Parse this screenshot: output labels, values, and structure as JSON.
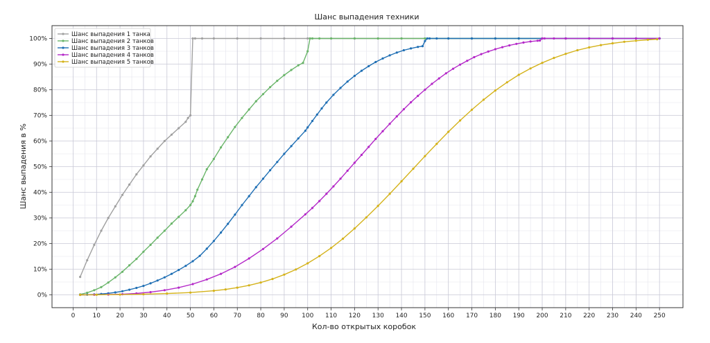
{
  "chart_data": {
    "type": "line",
    "title": "Шанс выпадения техники",
    "xlabel": "Кол-во открытых коробок",
    "ylabel": "Шанс выпадения в %",
    "xlim": [
      -9,
      260
    ],
    "ylim": [
      -5,
      105
    ],
    "xticks": [
      0,
      10,
      20,
      30,
      40,
      50,
      60,
      70,
      80,
      90,
      100,
      110,
      120,
      130,
      140,
      150,
      160,
      170,
      180,
      190,
      200,
      210,
      220,
      230,
      240,
      250
    ],
    "yticks": [
      0,
      10,
      20,
      30,
      40,
      50,
      60,
      70,
      80,
      90,
      100
    ],
    "ytick_labels": [
      "0%",
      "10%",
      "20%",
      "30%",
      "40%",
      "50%",
      "60%",
      "70%",
      "80%",
      "90%",
      "100%"
    ],
    "grid": true,
    "legend": "top-left",
    "series": [
      {
        "name": "Шанс выпадения 1 танка",
        "color": "#a0a0a0",
        "x": [
          3,
          6,
          9,
          12,
          15,
          18,
          21,
          24,
          27,
          30,
          33,
          36,
          39,
          42,
          45,
          48,
          49,
          50,
          51,
          52,
          55,
          60,
          70,
          80,
          90,
          100,
          110,
          120,
          130,
          140,
          150,
          160,
          170,
          180,
          190,
          200,
          210,
          220,
          230,
          240,
          250
        ],
        "y": [
          7,
          13.5,
          19.5,
          25,
          30,
          34.5,
          39,
          43,
          47,
          50.5,
          54,
          57,
          60,
          62.5,
          65,
          67.5,
          69,
          70,
          100,
          100,
          100,
          100,
          100,
          100,
          100,
          100,
          100,
          100,
          100,
          100,
          100,
          100,
          100,
          100,
          100,
          100,
          100,
          100,
          100,
          100,
          100
        ]
      },
      {
        "name": "Шанс выпадения 2 танков",
        "color": "#6ab56a",
        "x": [
          3,
          6,
          9,
          12,
          15,
          18,
          21,
          24,
          27,
          30,
          33,
          36,
          39,
          42,
          45,
          48,
          50,
          51,
          52,
          53,
          55,
          57,
          60,
          63,
          66,
          69,
          72,
          75,
          78,
          81,
          84,
          87,
          90,
          93,
          96,
          98,
          100,
          101,
          102,
          105,
          110,
          120,
          130,
          140,
          150,
          160,
          170,
          180,
          190,
          200,
          210,
          220,
          230,
          240,
          250
        ],
        "y": [
          0.2,
          0.8,
          1.8,
          3,
          4.8,
          6.8,
          9,
          11.5,
          14,
          16.8,
          19.5,
          22.3,
          25,
          27.8,
          30.4,
          33,
          35,
          36.5,
          38.5,
          41,
          45,
          49,
          53,
          57.5,
          61.5,
          65.5,
          69,
          72.3,
          75.5,
          78.3,
          81,
          83.5,
          85.7,
          87.7,
          89.5,
          90.5,
          95,
          100,
          100,
          100,
          100,
          100,
          100,
          100,
          100,
          100,
          100,
          100,
          100,
          100,
          100,
          100,
          100,
          100,
          100
        ]
      },
      {
        "name": "Шанс выпадения 3 танков",
        "color": "#1f6fb4",
        "x": [
          3,
          6,
          9,
          12,
          15,
          18,
          21,
          24,
          27,
          30,
          33,
          36,
          39,
          42,
          45,
          48,
          51,
          54,
          57,
          60,
          63,
          66,
          69,
          72,
          75,
          78,
          81,
          84,
          87,
          90,
          93,
          96,
          99,
          100,
          102,
          104,
          106,
          108,
          111,
          114,
          117,
          120,
          123,
          126,
          129,
          132,
          135,
          138,
          141,
          144,
          147,
          149,
          150,
          151,
          152,
          155,
          160,
          170,
          180,
          190,
          200,
          210,
          220,
          230,
          240,
          250
        ],
        "y": [
          0,
          0.05,
          0.15,
          0.35,
          0.6,
          0.95,
          1.4,
          2,
          2.7,
          3.5,
          4.5,
          5.6,
          6.8,
          8.2,
          9.7,
          11.3,
          13.1,
          15.2,
          18,
          21,
          24.3,
          27.7,
          31.3,
          35,
          38.5,
          42,
          45.3,
          48.6,
          51.8,
          55,
          58,
          61,
          64,
          65.3,
          67.8,
          70.3,
          72.7,
          75,
          78,
          80.7,
          83.2,
          85.4,
          87.4,
          89.2,
          90.8,
          92.2,
          93.4,
          94.5,
          95.4,
          96.1,
          96.7,
          97,
          99,
          100,
          100,
          100,
          100,
          100,
          100,
          100,
          100,
          100,
          100,
          100,
          100,
          100
        ]
      },
      {
        "name": "Шанс выпадения 4 танков",
        "color": "#b428c8",
        "x": [
          3,
          9,
          15,
          21,
          27,
          33,
          39,
          45,
          51,
          57,
          63,
          69,
          75,
          81,
          87,
          93,
          99,
          102,
          105,
          108,
          111,
          114,
          117,
          120,
          123,
          126,
          129,
          132,
          135,
          138,
          141,
          144,
          147,
          150,
          153,
          156,
          159,
          162,
          165,
          168,
          171,
          174,
          177,
          180,
          183,
          186,
          189,
          192,
          195,
          198,
          199,
          200,
          201,
          205,
          210,
          220,
          230,
          240,
          250
        ],
        "y": [
          0,
          0.02,
          0.1,
          0.25,
          0.55,
          1.05,
          1.8,
          2.8,
          4.2,
          6,
          8.2,
          10.9,
          14.2,
          17.9,
          22,
          26.6,
          31.4,
          33.9,
          36.6,
          39.4,
          42.3,
          45.3,
          48.4,
          51.5,
          54.6,
          57.7,
          60.8,
          63.8,
          66.7,
          69.6,
          72.4,
          75.1,
          77.6,
          80,
          82.3,
          84.4,
          86.4,
          88.2,
          89.8,
          91.3,
          92.7,
          93.9,
          94.9,
          95.8,
          96.6,
          97.3,
          97.9,
          98.4,
          98.8,
          99.1,
          99.2,
          100,
          100,
          100,
          100,
          100,
          100,
          100,
          100
        ]
      },
      {
        "name": "Шанс выпадения 5 танков",
        "color": "#d4b21a",
        "x": [
          3,
          10,
          20,
          30,
          40,
          50,
          60,
          65,
          70,
          75,
          80,
          85,
          90,
          95,
          100,
          105,
          110,
          115,
          120,
          125,
          130,
          135,
          140,
          145,
          150,
          155,
          160,
          165,
          170,
          175,
          180,
          185,
          190,
          195,
          200,
          205,
          210,
          215,
          220,
          225,
          230,
          235,
          240,
          245,
          249
        ],
        "y": [
          0,
          0.02,
          0.1,
          0.25,
          0.5,
          0.9,
          1.6,
          2.1,
          2.8,
          3.7,
          4.8,
          6.2,
          7.9,
          9.9,
          12.3,
          15.1,
          18.3,
          21.9,
          25.9,
          30.2,
          34.7,
          39.4,
          44.3,
          49.2,
          54.1,
          58.9,
          63.6,
          68,
          72.2,
          76.1,
          79.7,
          82.9,
          85.8,
          88.3,
          90.5,
          92.4,
          94,
          95.4,
          96.5,
          97.4,
          98.1,
          98.7,
          99.1,
          99.5,
          99.7
        ]
      }
    ]
  }
}
